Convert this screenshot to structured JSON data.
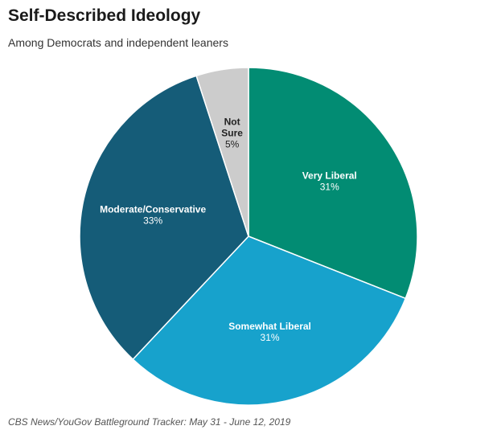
{
  "header": {
    "title": "Self-Described Ideology",
    "subtitle": "Among Democrats and independent leaners"
  },
  "footer": {
    "source": "CBS News/YouGov Battleground Tracker: May 31 - June 12, 2019"
  },
  "chart_data": {
    "type": "pie",
    "title": "Self-Described Ideology",
    "subtitle": "Among Democrats and independent leaners",
    "slices": [
      {
        "label": "Very Liberal",
        "lines": [
          "Very Liberal"
        ],
        "value": 31,
        "value_label": "31%",
        "color": "#028c73",
        "text_color": "#ffffff"
      },
      {
        "label": "Somewhat Liberal",
        "lines": [
          "Somewhat Liberal"
        ],
        "value": 31,
        "value_label": "31%",
        "color": "#17a2cc",
        "text_color": "#ffffff"
      },
      {
        "label": "Moderate/Conservative",
        "lines": [
          "Moderate/Conservative"
        ],
        "value": 33,
        "value_label": "33%",
        "color": "#155c78",
        "text_color": "#ffffff"
      },
      {
        "label": "Not Sure",
        "lines": [
          "Not",
          "Sure"
        ],
        "value": 5,
        "value_label": "5%",
        "color": "#cccccc",
        "text_color": "#222222"
      }
    ],
    "start_angle_deg": 0,
    "direction": "clockwise",
    "legend": "none"
  }
}
